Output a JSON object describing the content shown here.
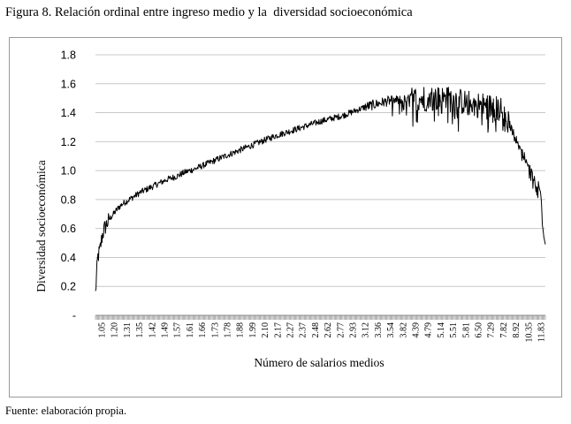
{
  "figure_title": "Figura 8. Relación ordinal entre ingreso medio y la  diversidad socioeconómica",
  "source_note": "Fuente: elaboración propia.",
  "colors": {
    "line": "#000000",
    "grid": "#c8c8c8",
    "axis": "#888888",
    "frame": "#9a9a9a"
  },
  "chart_data": {
    "type": "line",
    "title": "",
    "xlabel": "Número de salarios medios",
    "ylabel": "Diversidad socioeconómica",
    "ylim": [
      0,
      1.8
    ],
    "y_ticks": [
      {
        "value": 0,
        "label": "-"
      },
      {
        "value": 0.2,
        "label": "0.2"
      },
      {
        "value": 0.4,
        "label": "0.4"
      },
      {
        "value": 0.6,
        "label": "0.6"
      },
      {
        "value": 0.8,
        "label": "0.8"
      },
      {
        "value": 1.0,
        "label": "1.0"
      },
      {
        "value": 1.2,
        "label": "1.2"
      },
      {
        "value": 1.4,
        "label": "1.4"
      },
      {
        "value": 1.6,
        "label": "1.6"
      },
      {
        "value": 1.8,
        "label": "1.8"
      }
    ],
    "x_tick_labels": [
      "1.05",
      "1.20",
      "1.31",
      "1.35",
      "1.42",
      "1.49",
      "1.57",
      "1.61",
      "1.66",
      "1.73",
      "1.78",
      "1.88",
      "1.99",
      "2.10",
      "2.17",
      "2.27",
      "2.37",
      "2.48",
      "2.62",
      "2.77",
      "2.93",
      "3.12",
      "3.36",
      "3.54",
      "3.82",
      "4.39",
      "4.79",
      "5.14",
      "5.51",
      "5.81",
      "6.50",
      "7.29",
      "7.82",
      "8.92",
      "10.35",
      "11.83"
    ],
    "grid": true,
    "legend": "none",
    "series": [
      {
        "x_rank": [
          0,
          0.5,
          1,
          1.5,
          2,
          3,
          4,
          5,
          6,
          8,
          10,
          12,
          14,
          16,
          18,
          20,
          22,
          25,
          28,
          32,
          36,
          40,
          45,
          50,
          55,
          60,
          65,
          70,
          75,
          80,
          82,
          84,
          86,
          88,
          90,
          91,
          92,
          93,
          94,
          95,
          96,
          97,
          98,
          98.5,
          99,
          99.3,
          99.6,
          100
        ],
        "values": [
          0.15,
          0.4,
          0.45,
          0.55,
          0.6,
          0.66,
          0.7,
          0.74,
          0.77,
          0.81,
          0.85,
          0.88,
          0.91,
          0.94,
          0.96,
          0.99,
          1.01,
          1.05,
          1.09,
          1.14,
          1.19,
          1.24,
          1.29,
          1.34,
          1.38,
          1.44,
          1.48,
          1.49,
          1.5,
          1.49,
          1.47,
          1.46,
          1.45,
          1.44,
          1.42,
          1.38,
          1.32,
          1.25,
          1.18,
          1.12,
          1.05,
          0.98,
          0.92,
          0.9,
          0.85,
          0.7,
          0.55,
          0.49
        ]
      }
    ]
  }
}
